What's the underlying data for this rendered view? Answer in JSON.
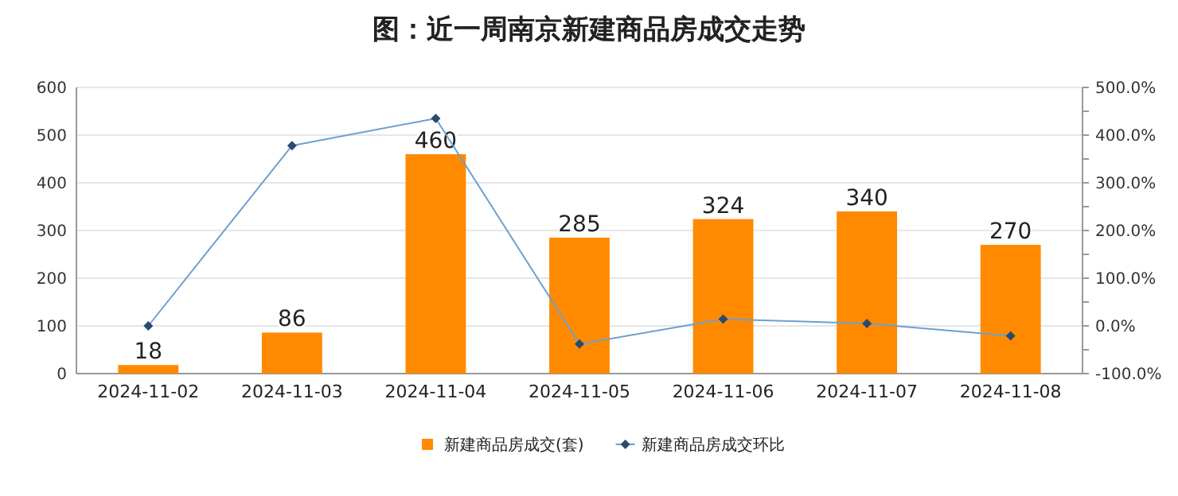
{
  "chart_data": {
    "type": "bar",
    "title": "图：近一周南京新建商品房成交走势",
    "categories": [
      "2024-11-02",
      "2024-11-03",
      "2024-11-04",
      "2024-11-05",
      "2024-11-06",
      "2024-11-07",
      "2024-11-08"
    ],
    "series": [
      {
        "name": "新建商品房成交(套)",
        "color": "#ff8a00",
        "values": [
          18,
          86,
          460,
          285,
          324,
          340,
          270
        ],
        "value_labels": [
          "18",
          "86",
          "460",
          "285",
          "324",
          "340",
          "270"
        ]
      },
      {
        "name": "新建商品房成交环比",
        "type": "line",
        "axis": "y2",
        "color": "#6f9fcf",
        "marker": "diamond",
        "values": [
          0,
          378,
          435,
          -38,
          14,
          5,
          -21
        ]
      }
    ],
    "ylim": [
      0,
      600
    ],
    "yticks": [
      0,
      100,
      200,
      300,
      400,
      500,
      600
    ],
    "y2lim": [
      -100,
      500
    ],
    "y2ticks": [
      {
        "value": -100,
        "label": "-100.0%"
      },
      {
        "value": -50,
        "label": null
      },
      {
        "value": 0,
        "label": "0.0%"
      },
      {
        "value": 50,
        "label": null
      },
      {
        "value": 100,
        "label": "100.0%"
      },
      {
        "value": 150,
        "label": null
      },
      {
        "value": 200,
        "label": "200.0%"
      },
      {
        "value": 250,
        "label": null
      },
      {
        "value": 300,
        "label": "300.0%"
      },
      {
        "value": 350,
        "label": null
      },
      {
        "value": 400,
        "label": "400.0%"
      },
      {
        "value": 450,
        "label": null
      },
      {
        "value": 500,
        "label": "500.0%"
      }
    ],
    "grid": "y",
    "legend": "bottom"
  }
}
